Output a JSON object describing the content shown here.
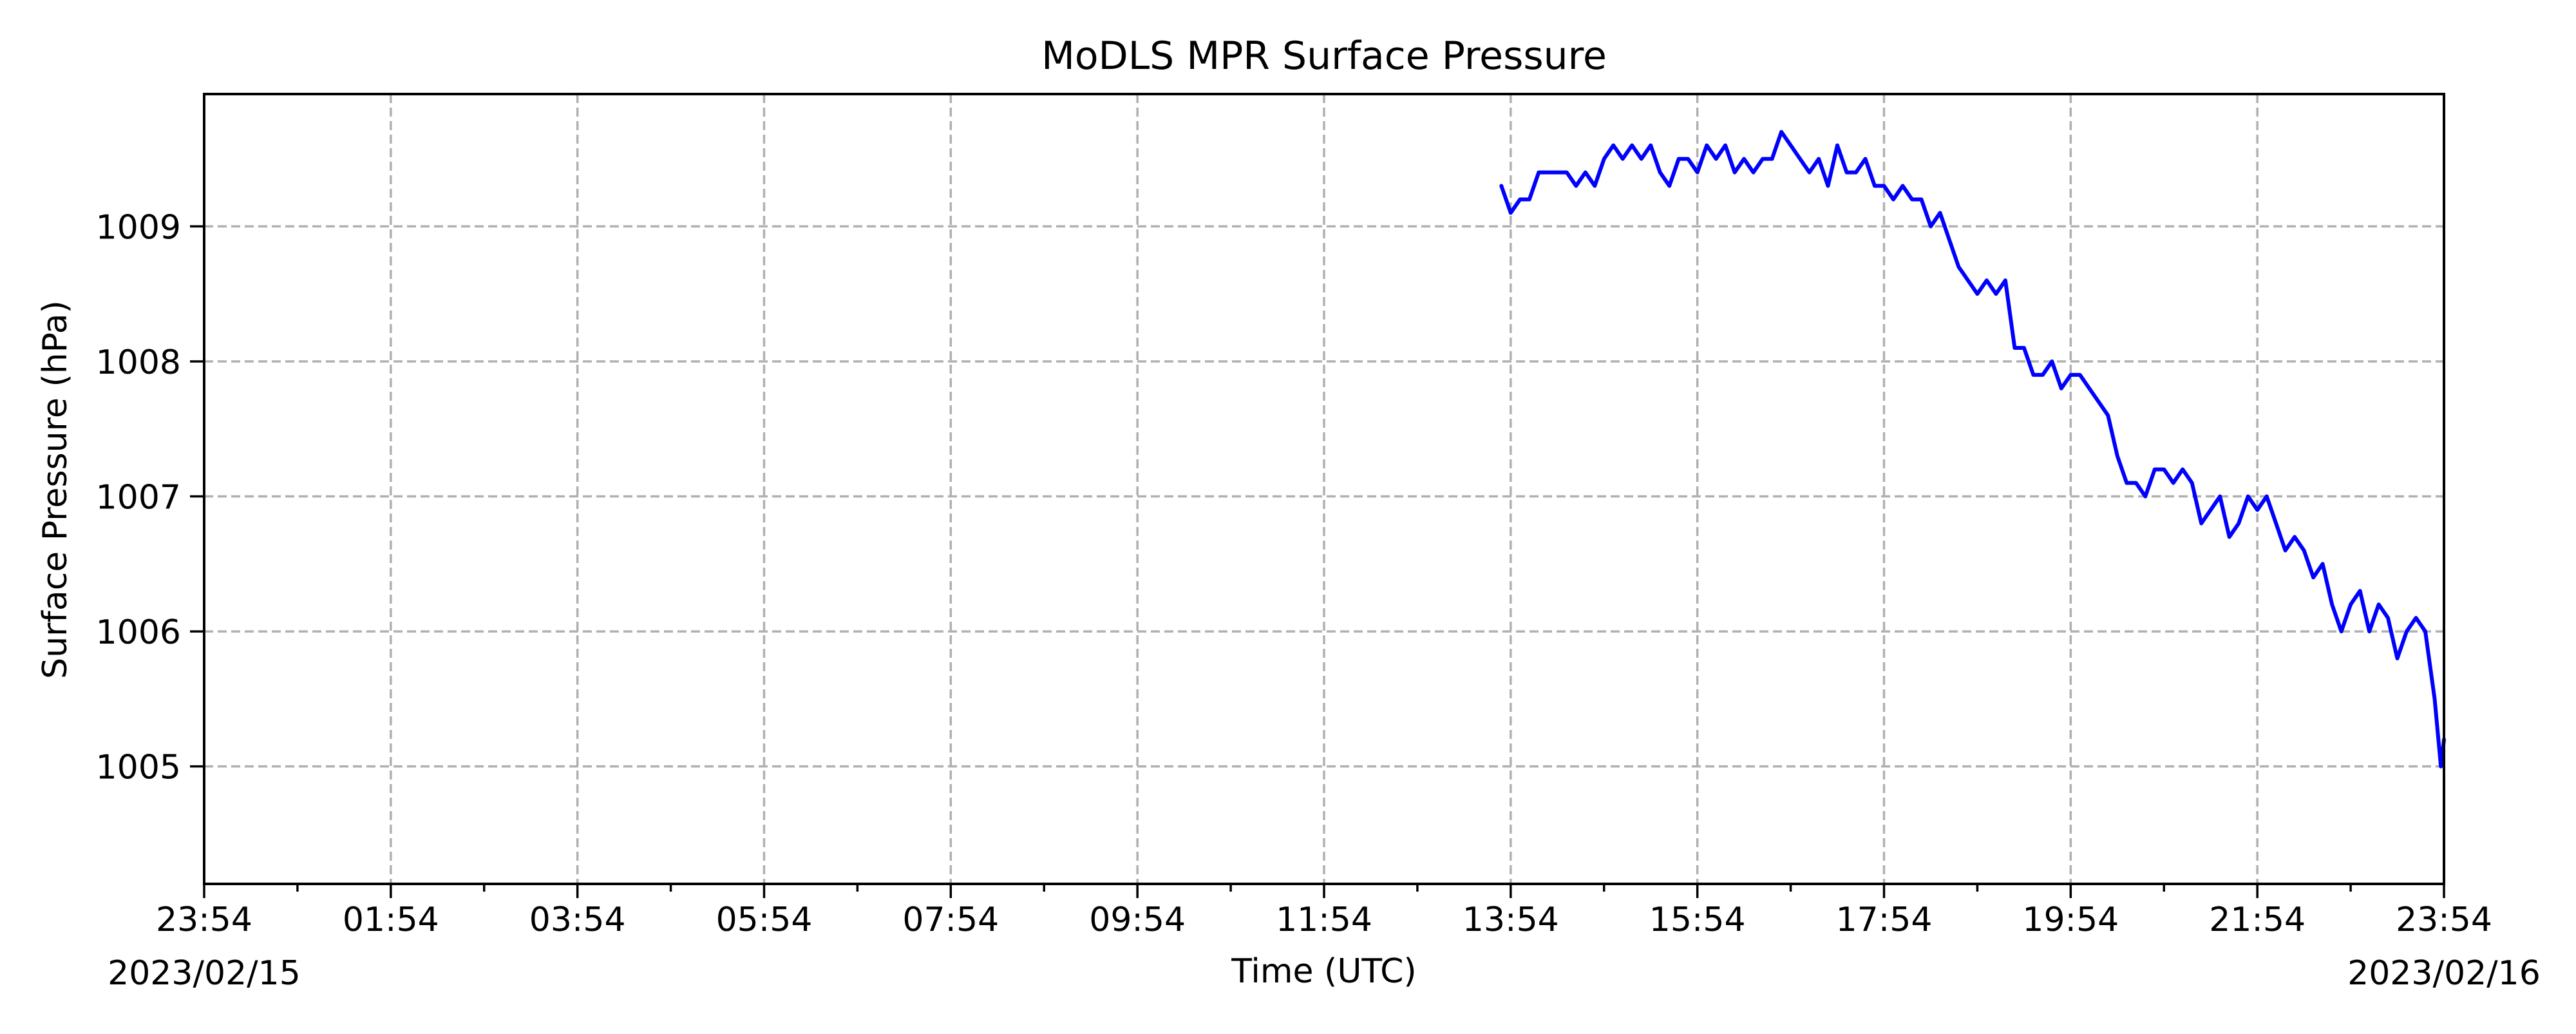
{
  "chart_data": {
    "type": "line",
    "title": "MoDLS MPR Surface Pressure",
    "xlabel": "Time (UTC)",
    "ylabel": "Surface Pressure (hPa)",
    "grid": true,
    "x_range": [
      "2023-02-15 23:54",
      "2023-02-16 23:54"
    ],
    "ylim": [
      1004.13,
      1009.98
    ],
    "x_ticks": [
      {
        "x": "2023-02-15 23:54",
        "label": "23:54",
        "date_label": "2023/02/15"
      },
      {
        "x": "2023-02-16 01:54",
        "label": "01:54",
        "date_label": ""
      },
      {
        "x": "2023-02-16 03:54",
        "label": "03:54",
        "date_label": ""
      },
      {
        "x": "2023-02-16 05:54",
        "label": "05:54",
        "date_label": ""
      },
      {
        "x": "2023-02-16 07:54",
        "label": "07:54",
        "date_label": ""
      },
      {
        "x": "2023-02-16 09:54",
        "label": "09:54",
        "date_label": ""
      },
      {
        "x": "2023-02-16 11:54",
        "label": "11:54",
        "date_label": ""
      },
      {
        "x": "2023-02-16 13:54",
        "label": "13:54",
        "date_label": ""
      },
      {
        "x": "2023-02-16 15:54",
        "label": "15:54",
        "date_label": ""
      },
      {
        "x": "2023-02-16 17:54",
        "label": "17:54",
        "date_label": ""
      },
      {
        "x": "2023-02-16 19:54",
        "label": "19:54",
        "date_label": ""
      },
      {
        "x": "2023-02-16 21:54",
        "label": "21:54",
        "date_label": ""
      },
      {
        "x": "2023-02-16 23:54",
        "label": "23:54",
        "date_label": "2023/02/16"
      }
    ],
    "y_ticks": [
      {
        "y": 1005,
        "label": "1005"
      },
      {
        "y": 1006,
        "label": "1006"
      },
      {
        "y": 1007,
        "label": "1007"
      },
      {
        "y": 1008,
        "label": "1008"
      },
      {
        "y": 1009,
        "label": "1009"
      }
    ],
    "series": [
      {
        "color": "#0000ff",
        "points": [
          [
            "2023-02-16 13:48",
            1009.3
          ],
          [
            "2023-02-16 13:54",
            1009.1
          ],
          [
            "2023-02-16 14:00",
            1009.2
          ],
          [
            "2023-02-16 14:06",
            1009.2
          ],
          [
            "2023-02-16 14:12",
            1009.4
          ],
          [
            "2023-02-16 14:18",
            1009.4
          ],
          [
            "2023-02-16 14:24",
            1009.4
          ],
          [
            "2023-02-16 14:30",
            1009.4
          ],
          [
            "2023-02-16 14:36",
            1009.3
          ],
          [
            "2023-02-16 14:42",
            1009.4
          ],
          [
            "2023-02-16 14:48",
            1009.3
          ],
          [
            "2023-02-16 14:54",
            1009.5
          ],
          [
            "2023-02-16 15:00",
            1009.6
          ],
          [
            "2023-02-16 15:06",
            1009.5
          ],
          [
            "2023-02-16 15:12",
            1009.6
          ],
          [
            "2023-02-16 15:18",
            1009.5
          ],
          [
            "2023-02-16 15:24",
            1009.6
          ],
          [
            "2023-02-16 15:30",
            1009.4
          ],
          [
            "2023-02-16 15:36",
            1009.3
          ],
          [
            "2023-02-16 15:42",
            1009.5
          ],
          [
            "2023-02-16 15:48",
            1009.5
          ],
          [
            "2023-02-16 15:54",
            1009.4
          ],
          [
            "2023-02-16 16:00",
            1009.6
          ],
          [
            "2023-02-16 16:06",
            1009.5
          ],
          [
            "2023-02-16 16:12",
            1009.6
          ],
          [
            "2023-02-16 16:18",
            1009.4
          ],
          [
            "2023-02-16 16:24",
            1009.5
          ],
          [
            "2023-02-16 16:30",
            1009.4
          ],
          [
            "2023-02-16 16:36",
            1009.5
          ],
          [
            "2023-02-16 16:42",
            1009.5
          ],
          [
            "2023-02-16 16:48",
            1009.7
          ],
          [
            "2023-02-16 16:54",
            1009.6
          ],
          [
            "2023-02-16 17:00",
            1009.5
          ],
          [
            "2023-02-16 17:06",
            1009.4
          ],
          [
            "2023-02-16 17:12",
            1009.5
          ],
          [
            "2023-02-16 17:18",
            1009.3
          ],
          [
            "2023-02-16 17:24",
            1009.6
          ],
          [
            "2023-02-16 17:30",
            1009.4
          ],
          [
            "2023-02-16 17:36",
            1009.4
          ],
          [
            "2023-02-16 17:42",
            1009.5
          ],
          [
            "2023-02-16 17:48",
            1009.3
          ],
          [
            "2023-02-16 17:54",
            1009.3
          ],
          [
            "2023-02-16 18:00",
            1009.2
          ],
          [
            "2023-02-16 18:06",
            1009.3
          ],
          [
            "2023-02-16 18:12",
            1009.2
          ],
          [
            "2023-02-16 18:18",
            1009.2
          ],
          [
            "2023-02-16 18:24",
            1009.0
          ],
          [
            "2023-02-16 18:30",
            1009.1
          ],
          [
            "2023-02-16 18:36",
            1008.9
          ],
          [
            "2023-02-16 18:42",
            1008.7
          ],
          [
            "2023-02-16 18:48",
            1008.6
          ],
          [
            "2023-02-16 18:54",
            1008.5
          ],
          [
            "2023-02-16 19:00",
            1008.6
          ],
          [
            "2023-02-16 19:06",
            1008.5
          ],
          [
            "2023-02-16 19:12",
            1008.6
          ],
          [
            "2023-02-16 19:18",
            1008.1
          ],
          [
            "2023-02-16 19:24",
            1008.1
          ],
          [
            "2023-02-16 19:30",
            1007.9
          ],
          [
            "2023-02-16 19:36",
            1007.9
          ],
          [
            "2023-02-16 19:42",
            1008.0
          ],
          [
            "2023-02-16 19:48",
            1007.8
          ],
          [
            "2023-02-16 19:54",
            1007.9
          ],
          [
            "2023-02-16 20:00",
            1007.9
          ],
          [
            "2023-02-16 20:06",
            1007.8
          ],
          [
            "2023-02-16 20:12",
            1007.7
          ],
          [
            "2023-02-16 20:18",
            1007.6
          ],
          [
            "2023-02-16 20:24",
            1007.3
          ],
          [
            "2023-02-16 20:30",
            1007.1
          ],
          [
            "2023-02-16 20:36",
            1007.1
          ],
          [
            "2023-02-16 20:42",
            1007.0
          ],
          [
            "2023-02-16 20:48",
            1007.2
          ],
          [
            "2023-02-16 20:54",
            1007.2
          ],
          [
            "2023-02-16 21:00",
            1007.1
          ],
          [
            "2023-02-16 21:06",
            1007.2
          ],
          [
            "2023-02-16 21:12",
            1007.1
          ],
          [
            "2023-02-16 21:18",
            1006.8
          ],
          [
            "2023-02-16 21:24",
            1006.9
          ],
          [
            "2023-02-16 21:30",
            1007.0
          ],
          [
            "2023-02-16 21:36",
            1006.7
          ],
          [
            "2023-02-16 21:42",
            1006.8
          ],
          [
            "2023-02-16 21:48",
            1007.0
          ],
          [
            "2023-02-16 21:54",
            1006.9
          ],
          [
            "2023-02-16 22:00",
            1007.0
          ],
          [
            "2023-02-16 22:06",
            1006.8
          ],
          [
            "2023-02-16 22:12",
            1006.6
          ],
          [
            "2023-02-16 22:18",
            1006.7
          ],
          [
            "2023-02-16 22:24",
            1006.6
          ],
          [
            "2023-02-16 22:30",
            1006.4
          ],
          [
            "2023-02-16 22:36",
            1006.5
          ],
          [
            "2023-02-16 22:42",
            1006.2
          ],
          [
            "2023-02-16 22:48",
            1006.0
          ],
          [
            "2023-02-16 22:54",
            1006.2
          ],
          [
            "2023-02-16 23:00",
            1006.3
          ],
          [
            "2023-02-16 23:06",
            1006.0
          ],
          [
            "2023-02-16 23:12",
            1006.2
          ],
          [
            "2023-02-16 23:18",
            1006.1
          ],
          [
            "2023-02-16 23:24",
            1005.8
          ],
          [
            "2023-02-16 23:30",
            1006.0
          ],
          [
            "2023-02-16 23:36",
            1006.1
          ],
          [
            "2023-02-16 23:42",
            1006.0
          ],
          [
            "2023-02-16 23:48",
            1005.5
          ],
          [
            "2023-02-16 23:52",
            1005.0
          ],
          [
            "2023-02-16 23:54",
            1005.2
          ]
        ]
      }
    ]
  }
}
